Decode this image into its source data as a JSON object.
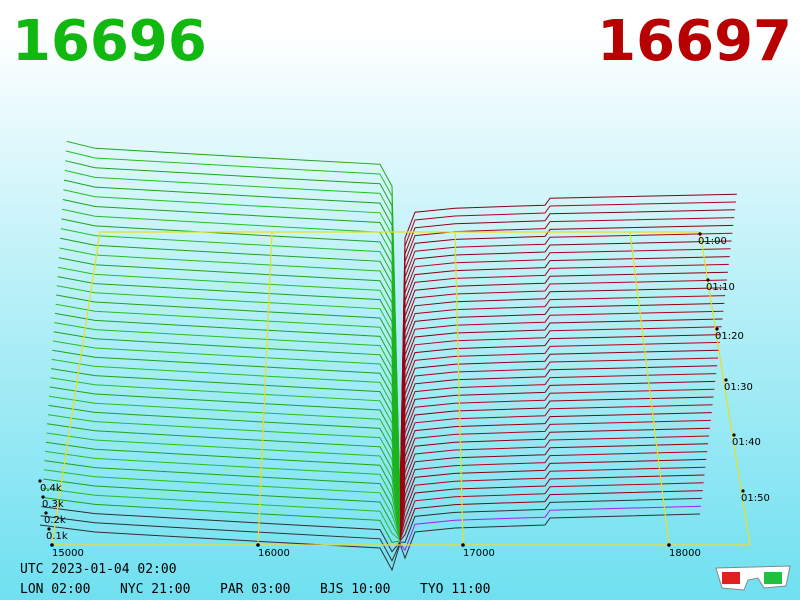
{
  "header": {
    "bid": "16696",
    "ask": "16697"
  },
  "axes": {
    "depth_labels": [
      "0.4k",
      "0.3k",
      "0.2k",
      "0.1k"
    ],
    "price_labels": [
      "15000",
      "16000",
      "17000",
      "18000"
    ],
    "time_labels": [
      "01:00",
      "01:10",
      "01:20",
      "01:30",
      "01:40",
      "01:50"
    ]
  },
  "footer": {
    "utc": "UTC 2023-01-04 02:00",
    "cities": [
      "LON 02:00",
      "NYC 21:00",
      "PAR 03:00",
      "BJS 10:00",
      "TYO 11:00"
    ]
  }
}
